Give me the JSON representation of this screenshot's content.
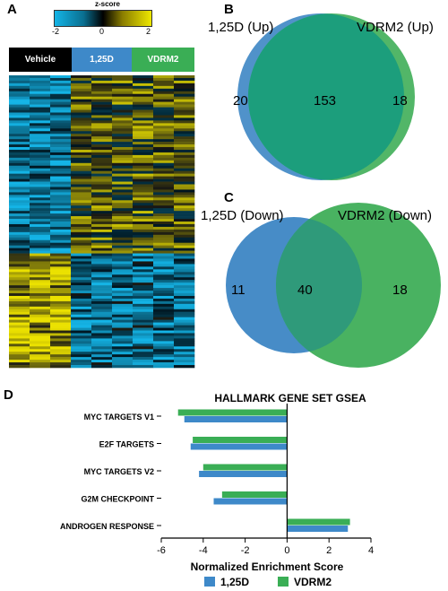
{
  "panels": {
    "a": "A",
    "b": "B",
    "c": "C",
    "d": "D"
  },
  "colors": {
    "blue": "#3d86c4",
    "green": "#3fae58",
    "overlap": "#1f9f7a",
    "cyan": "#11b0e0",
    "yellow": "#e8e000",
    "vehicle": "#000000",
    "d125": "#3e89c9",
    "vdrm2": "#3aae55"
  },
  "heatmap": {
    "scale_title": "z-score",
    "scale_ticks": [
      "-2",
      "0",
      "2"
    ],
    "groups": [
      "Vehicle",
      "1,25D",
      "VDRM2"
    ]
  },
  "venn_up": {
    "left_label": "1,25D (Up)",
    "right_label": "VDRM2 (Up)",
    "left_only": "20",
    "both": "153",
    "right_only": "18"
  },
  "venn_down": {
    "left_label": "1,25D (Down)",
    "right_label": "VDRM2 (Down)",
    "left_only": "11",
    "both": "40",
    "right_only": "18"
  },
  "chart_data": {
    "type": "bar",
    "orientation": "horizontal",
    "title": "HALLMARK GENE SET GSEA",
    "xlabel": "Normalized Enrichment Score",
    "ylabel": "",
    "xlim": [
      -6,
      4
    ],
    "xticks": [
      "-6",
      "-4",
      "-2",
      "0",
      "2",
      "4"
    ],
    "categories": [
      "MYC TARGETS V1",
      "E2F TARGETS",
      "MYC TARGETS V2",
      "G2M CHECKPOINT",
      "ANDROGEN RESPONSE"
    ],
    "series": [
      {
        "name": "1,25D",
        "color": "#3e89c9",
        "values": [
          -4.9,
          -4.6,
          -4.2,
          -3.5,
          2.9
        ]
      },
      {
        "name": "VDRM2",
        "color": "#3aae55",
        "values": [
          -5.2,
          -4.5,
          -4.0,
          -3.1,
          3.0
        ]
      }
    ],
    "legend": "bottom"
  }
}
